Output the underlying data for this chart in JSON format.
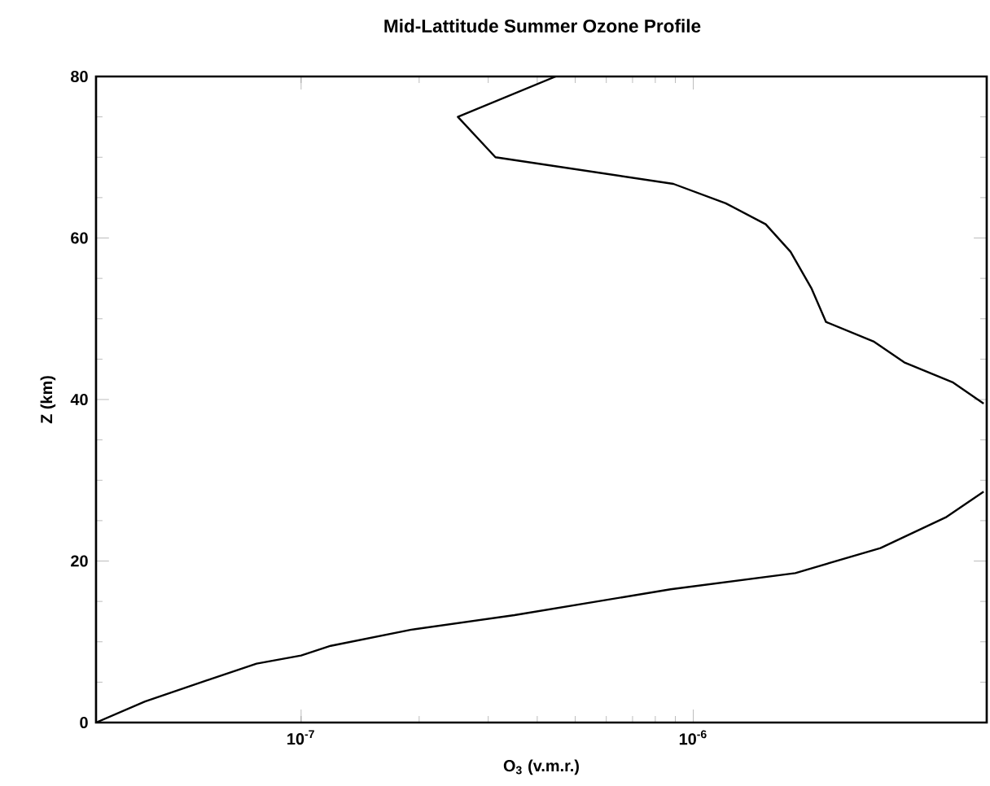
{
  "chart_data": {
    "type": "line",
    "title": "Mid-Lattitude Summer Ozone Profile",
    "xlabel": "O$_{3}$ (v.m.r.)",
    "ylabel": "Z (km)",
    "log": "x",
    "color": "#000000",
    "xlim": [
      3e-08,
      5.6e-06
    ],
    "ylim": [
      0,
      80
    ],
    "xticks": [
      {
        "value": 1e-07,
        "label": "10$^{-7}$"
      },
      {
        "value": 1e-06,
        "label": "10$^{-6}$"
      }
    ],
    "yticks": [
      0,
      20,
      40,
      60,
      80
    ],
    "marker": "none",
    "line_style": "solid",
    "x": [
      3e-08,
      4e-08,
      5.9e-08,
      7.7e-08,
      1e-07,
      1.19e-07,
      1.91e-07,
      3.5e-07,
      8.75e-07,
      1.82e-06,
      3e-06,
      4.4e-06,
      5.5e-06,
      null,
      5.5e-06,
      4.6e-06,
      3.45e-06,
      2.88e-06,
      2.18e-06,
      2e-06,
      1.77e-06,
      1.53e-06,
      1.21e-06,
      8.9e-07,
      3.13e-07,
      2.51e-07,
      4.46e-07
    ],
    "values": [
      0,
      2.6,
      5.4,
      7.3,
      8.3,
      9.5,
      11.5,
      13.3,
      16.5,
      18.5,
      21.6,
      25.4,
      28.6,
      null,
      39.5,
      42.1,
      44.6,
      47.2,
      49.6,
      53.8,
      58.3,
      61.7,
      64.3,
      66.7,
      70.0,
      75.0,
      80
    ]
  }
}
